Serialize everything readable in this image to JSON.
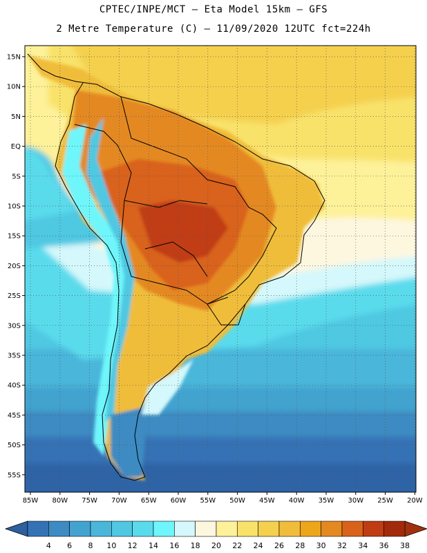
{
  "header": {
    "line1": "CPTEC/INPE/MCT –  Eta Model 15km – GFS",
    "line2": "2 Metre Temperature (C) – 11/09/2020 12UTC fct=224h"
  },
  "map": {
    "lat_labels": [
      "15N",
      "10N",
      "5N",
      "EQ",
      "5S",
      "10S",
      "15S",
      "20S",
      "25S",
      "30S",
      "35S",
      "40S",
      "45S",
      "50S",
      "55S"
    ],
    "lon_labels": [
      "85W",
      "80W",
      "75W",
      "70W",
      "65W",
      "60W",
      "55W",
      "50W",
      "45W",
      "40W",
      "35W",
      "30W",
      "25W",
      "20W"
    ]
  },
  "colorbar": {
    "colors": [
      "#3572b5",
      "#3d8bc2",
      "#43a3cf",
      "#4ab6da",
      "#50c8e2",
      "#5adbec",
      "#6ef6fb",
      "#d4f8fb",
      "#fdf7e0",
      "#fdf199",
      "#f9e26a",
      "#f4d04e",
      "#f0bd3b",
      "#eda51a",
      "#e48920",
      "#d9621a",
      "#c03c12",
      "#a22a0a"
    ],
    "labels": [
      "4",
      "6",
      "8",
      "10",
      "12",
      "14",
      "16",
      "18",
      "20",
      "22",
      "24",
      "26",
      "28",
      "30",
      "32",
      "34",
      "36",
      "38"
    ]
  }
}
